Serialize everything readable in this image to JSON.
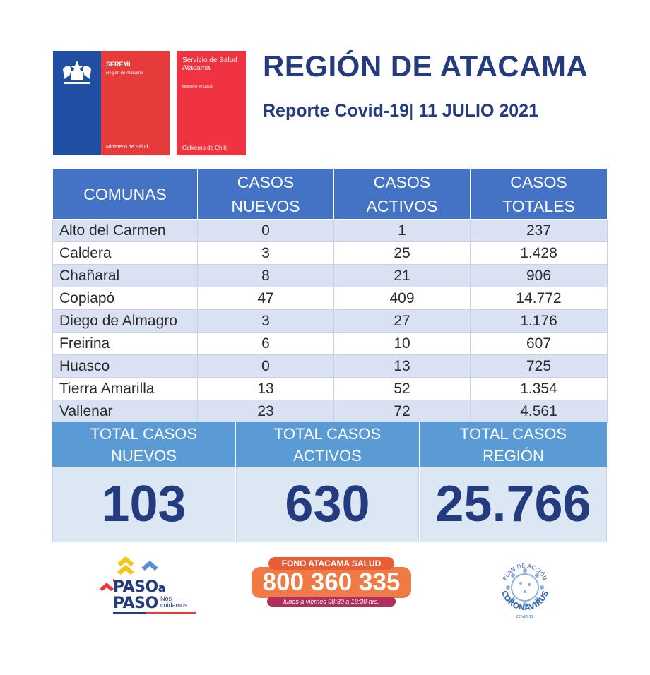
{
  "header": {
    "seremi_title": "SEREMI",
    "seremi_region": "Región de Atacama",
    "seremi_ministry": "Ministerio de Salud",
    "servicio_title": "Servicio de Salud Atacama",
    "servicio_ministry": "Ministerio de Salud",
    "servicio_gob": "Gobierno de Chile",
    "title": "REGIÓN DE ATACAMA",
    "report_label": "Reporte Covid-19",
    "separator": "|",
    "date": "11 JULIO 2021"
  },
  "table": {
    "headers": [
      {
        "line1": "COMUNAS",
        "line2": ""
      },
      {
        "line1": "CASOS",
        "line2": "NUEVOS"
      },
      {
        "line1": "CASOS",
        "line2": "ACTIVOS"
      },
      {
        "line1": "CASOS",
        "line2": "TOTALES"
      }
    ],
    "rows": [
      {
        "comuna": "Alto del Carmen",
        "nuevos": "0",
        "activos": "1",
        "totales": "237"
      },
      {
        "comuna": "Caldera",
        "nuevos": "3",
        "activos": "25",
        "totales": "1.428"
      },
      {
        "comuna": "Chañaral",
        "nuevos": "8",
        "activos": "21",
        "totales": "906"
      },
      {
        "comuna": "Copiapó",
        "nuevos": "47",
        "activos": "409",
        "totales": "14.772"
      },
      {
        "comuna": "Diego de Almagro",
        "nuevos": "3",
        "activos": "27",
        "totales": "1.176"
      },
      {
        "comuna": "Freirina",
        "nuevos": "6",
        "activos": "10",
        "totales": "607"
      },
      {
        "comuna": "Huasco",
        "nuevos": "0",
        "activos": "13",
        "totales": "725"
      },
      {
        "comuna": "Tierra Amarilla",
        "nuevos": "13",
        "activos": "52",
        "totales": "1.354"
      },
      {
        "comuna": "Vallenar",
        "nuevos": "23",
        "activos": "72",
        "totales": "4.561"
      }
    ]
  },
  "totals": [
    {
      "line1": "TOTAL CASOS",
      "line2": "NUEVOS",
      "value": "103"
    },
    {
      "line1": "TOTAL CASOS",
      "line2": "ACTIVOS",
      "value": "630"
    },
    {
      "line1": "TOTAL CASOS",
      "line2": "REGIÓN",
      "value": "25.766"
    }
  ],
  "footer": {
    "paso_line1": "PASO",
    "paso_a": "a",
    "paso_line2": "PASO",
    "paso_sub": "Nos cuidamos",
    "fono_label": "FONO ATACAMA SALUD",
    "fono_number": "800 360 335",
    "fono_hours": "lunes a viernes 08:30 a 19:30 hrs.",
    "corona_top": "PLAN DE ACCIÓN",
    "corona_main": "CORONAVIRUS",
    "corona_bottom": "COVID-19"
  },
  "colors": {
    "title_blue": "#243c7f",
    "header_blue": "#4472c4",
    "totals_header": "#5b9bd5",
    "row_stripe": "#d9e1f2",
    "totals_value_bg": "#dce7f4",
    "gov_blue": "#1f4ea3",
    "gov_red": "#e63b3b",
    "fono_orange": "#f07a43"
  }
}
